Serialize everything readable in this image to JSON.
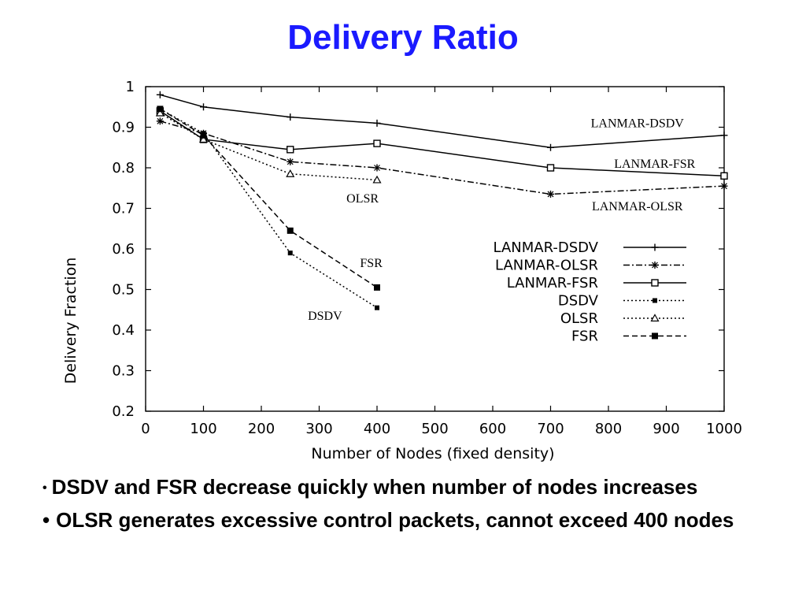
{
  "slide": {
    "title": "Delivery Ratio",
    "bullets": [
      {
        "marker": "•",
        "text": "DSDV and FSR decrease quickly when number of nodes increases"
      },
      {
        "marker": "•",
        "text": "OLSR generates excessive control packets, cannot exceed 400 nodes"
      }
    ]
  },
  "chart_data": {
    "type": "line",
    "title": "",
    "xlabel": "Number of Nodes (fixed density)",
    "ylabel": "Delivery Fraction",
    "xlim": [
      0,
      1000
    ],
    "ylim": [
      0.2,
      1
    ],
    "xticks": [
      "0",
      "100",
      "200",
      "300",
      "400",
      "500",
      "600",
      "700",
      "800",
      "900",
      "1000"
    ],
    "yticks": [
      "0.2",
      "0.3",
      "0.4",
      "0.5",
      "0.6",
      "0.7",
      "0.8",
      "0.9",
      "1"
    ],
    "grid": false,
    "legend_position": "lower-right",
    "series": [
      {
        "name": "LANMAR-DSDV",
        "marker": "plus",
        "dash": "solid",
        "x": [
          25,
          100,
          250,
          400,
          700,
          1000
        ],
        "y": [
          0.98,
          0.95,
          0.925,
          0.91,
          0.85,
          0.88
        ]
      },
      {
        "name": "LANMAR-OLSR",
        "marker": "star",
        "dash": "dashdot",
        "x": [
          25,
          100,
          250,
          400,
          700,
          1000
        ],
        "y": [
          0.915,
          0.885,
          0.815,
          0.8,
          0.735,
          0.755
        ]
      },
      {
        "name": "LANMAR-FSR",
        "marker": "square",
        "dash": "solid",
        "x": [
          25,
          100,
          250,
          400,
          700,
          1000
        ],
        "y": [
          0.94,
          0.87,
          0.845,
          0.86,
          0.8,
          0.78
        ]
      },
      {
        "name": "DSDV",
        "marker": "filled-small",
        "dash": "dotted",
        "x": [
          25,
          100,
          250,
          400
        ],
        "y": [
          0.945,
          0.885,
          0.59,
          0.455
        ]
      },
      {
        "name": "OLSR",
        "marker": "triangle",
        "dash": "dotted",
        "x": [
          25,
          100,
          250,
          400
        ],
        "y": [
          0.935,
          0.87,
          0.785,
          0.77
        ]
      },
      {
        "name": "FSR",
        "marker": "filled-square",
        "dash": "dashed",
        "x": [
          25,
          100,
          250,
          400
        ],
        "y": [
          0.945,
          0.88,
          0.645,
          0.505
        ]
      }
    ],
    "annotations": [
      {
        "text": "LANMAR-DSDV",
        "x": 850,
        "y": 0.9
      },
      {
        "text": "LANMAR-FSR",
        "x": 880,
        "y": 0.8
      },
      {
        "text": "LANMAR-OLSR",
        "x": 850,
        "y": 0.695
      },
      {
        "text": "OLSR",
        "x": 375,
        "y": 0.715
      },
      {
        "text": "FSR",
        "x": 390,
        "y": 0.555
      },
      {
        "text": "DSDV",
        "x": 310,
        "y": 0.425
      }
    ]
  }
}
